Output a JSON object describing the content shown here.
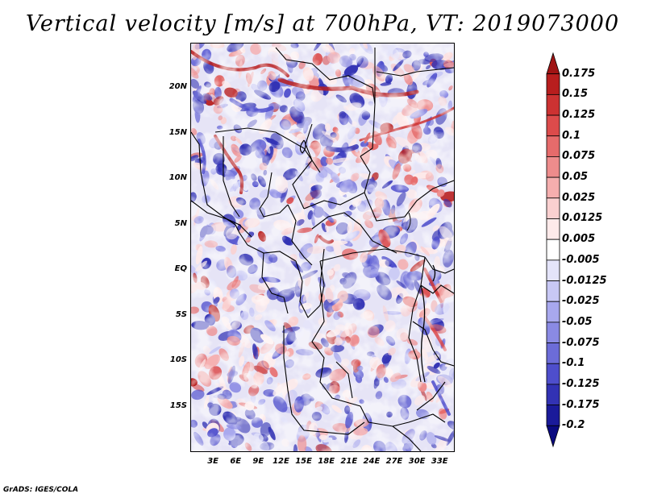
{
  "title": "Vertical velocity [m/s] at 700hPa, VT: 2019073000",
  "footer": "GrADS: IGES/COLA",
  "map": {
    "lat_labels": [
      "20N",
      "15N",
      "10N",
      "5N",
      "EQ",
      "5S",
      "10S",
      "15S"
    ],
    "lat_values": [
      20,
      15,
      10,
      5,
      0,
      -5,
      -10,
      -15
    ],
    "lon_labels": [
      "3E",
      "6E",
      "9E",
      "12E",
      "15E",
      "18E",
      "21E",
      "24E",
      "27E",
      "30E",
      "33E"
    ],
    "lon_values": [
      3,
      6,
      9,
      12,
      15,
      18,
      21,
      24,
      27,
      30,
      33
    ],
    "lat_range": [
      -20,
      25
    ],
    "lon_range": [
      0,
      35
    ]
  },
  "colorbar": {
    "labels": [
      "0.175",
      "0.15",
      "0.125",
      "0.1",
      "0.075",
      "0.05",
      "0.025",
      "0.0125",
      "0.005",
      "-0.005",
      "-0.0125",
      "-0.025",
      "-0.05",
      "-0.075",
      "-0.1",
      "-0.125",
      "-0.175",
      "-0.2"
    ],
    "colors": [
      "#a01414",
      "#b81e1e",
      "#cc3232",
      "#dc4b4b",
      "#e66b6b",
      "#ee8c8c",
      "#f5aeae",
      "#fad0d0",
      "#fdeaea",
      "#ffffff",
      "#e4e4fa",
      "#c8c8f5",
      "#a8a8ee",
      "#8a8ae4",
      "#6c6cd8",
      "#4e4ecc",
      "#3232b4",
      "#1a1a9a",
      "#0a0a80"
    ]
  },
  "colors": {
    "positive_accent": "#cc3232",
    "negative_accent": "#3232b4"
  }
}
